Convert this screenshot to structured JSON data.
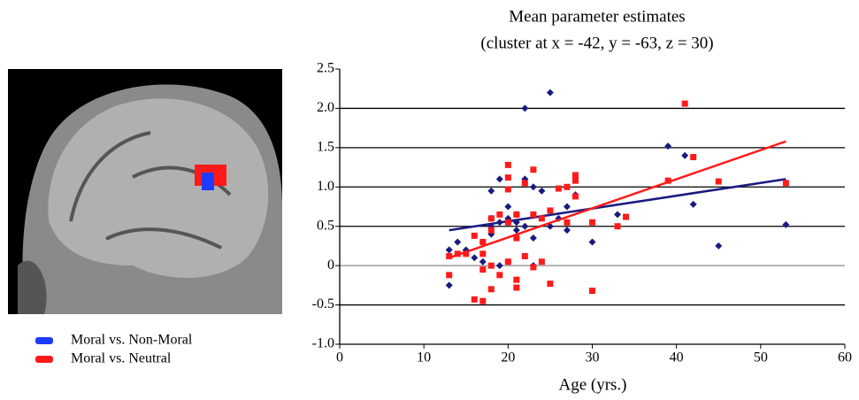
{
  "chart_data": {
    "type": "scatter",
    "title": "Mean parameter estimates",
    "subtitle": "(cluster at x = -42, y = -63, z = 30)",
    "xlabel": "Age (yrs.)",
    "xlim": [
      0,
      60
    ],
    "xticks": [
      0,
      10,
      20,
      30,
      40,
      50,
      60
    ],
    "ylim": [
      -1,
      2.5
    ],
    "yticks": [
      {
        "value": -1,
        "label": "-1.0"
      },
      -0.5,
      0,
      0.5,
      {
        "value": 1,
        "label": "1.0"
      },
      1.5,
      {
        "value": 2,
        "label": "2.0"
      },
      2.5
    ],
    "grid": true,
    "series": [
      {
        "name": "Moral vs. Non-Moral",
        "color": "#1a1a80",
        "legend_color": "#1e3cff",
        "marker": "diamond",
        "x": [
          13,
          13,
          14,
          15,
          16,
          17,
          17,
          18,
          18,
          18,
          18,
          19,
          19,
          19,
          20,
          20,
          20,
          20,
          21,
          21,
          21,
          22,
          22,
          22,
          23,
          23,
          23,
          24,
          25,
          25,
          26,
          27,
          27,
          28,
          30,
          33,
          39,
          41,
          42,
          45,
          53
        ],
        "values": [
          -0.25,
          0.2,
          0.3,
          0.2,
          0.1,
          0.3,
          0.05,
          0.95,
          0.6,
          0.5,
          0.4,
          1.1,
          0.55,
          0.0,
          0.75,
          0.6,
          0.55,
          0.05,
          0.65,
          0.55,
          0.45,
          2.0,
          1.1,
          0.5,
          1.0,
          0.35,
          0.0,
          0.95,
          2.2,
          0.5,
          0.6,
          0.75,
          0.45,
          0.9,
          0.3,
          0.65,
          1.52,
          1.4,
          0.78,
          0.25,
          0.52
        ],
        "trend_x": [
          13,
          53
        ],
        "trend_y": [
          0.45,
          1.1
        ]
      },
      {
        "name": "Moral vs. Neutral",
        "color": "#ff1a1a",
        "legend_color": "#ff1a1a",
        "marker": "square",
        "x": [
          13,
          13,
          14,
          15,
          16,
          16,
          17,
          17,
          17,
          17,
          18,
          18,
          18,
          18,
          19,
          19,
          20,
          20,
          20,
          20,
          20,
          21,
          21,
          21,
          21,
          22,
          22,
          23,
          23,
          23,
          24,
          24,
          25,
          25,
          26,
          27,
          27,
          28,
          28,
          28,
          30,
          30,
          33,
          34,
          39,
          41,
          42,
          45,
          53
        ],
        "values": [
          -0.12,
          0.12,
          0.15,
          0.15,
          -0.43,
          0.38,
          -0.45,
          -0.05,
          0.15,
          0.3,
          -0.3,
          0.0,
          0.45,
          0.6,
          -0.12,
          0.65,
          1.28,
          1.12,
          0.97,
          0.55,
          0.05,
          -0.18,
          -0.28,
          0.35,
          0.65,
          1.05,
          0.12,
          1.22,
          0.65,
          -0.02,
          0.05,
          0.6,
          0.7,
          -0.23,
          0.98,
          1.0,
          0.55,
          1.15,
          1.08,
          0.88,
          0.55,
          -0.32,
          0.5,
          0.62,
          1.08,
          2.06,
          1.38,
          1.07,
          1.05
        ],
        "trend_x": [
          13,
          53
        ],
        "trend_y": [
          0.1,
          1.58
        ]
      }
    ]
  }
}
